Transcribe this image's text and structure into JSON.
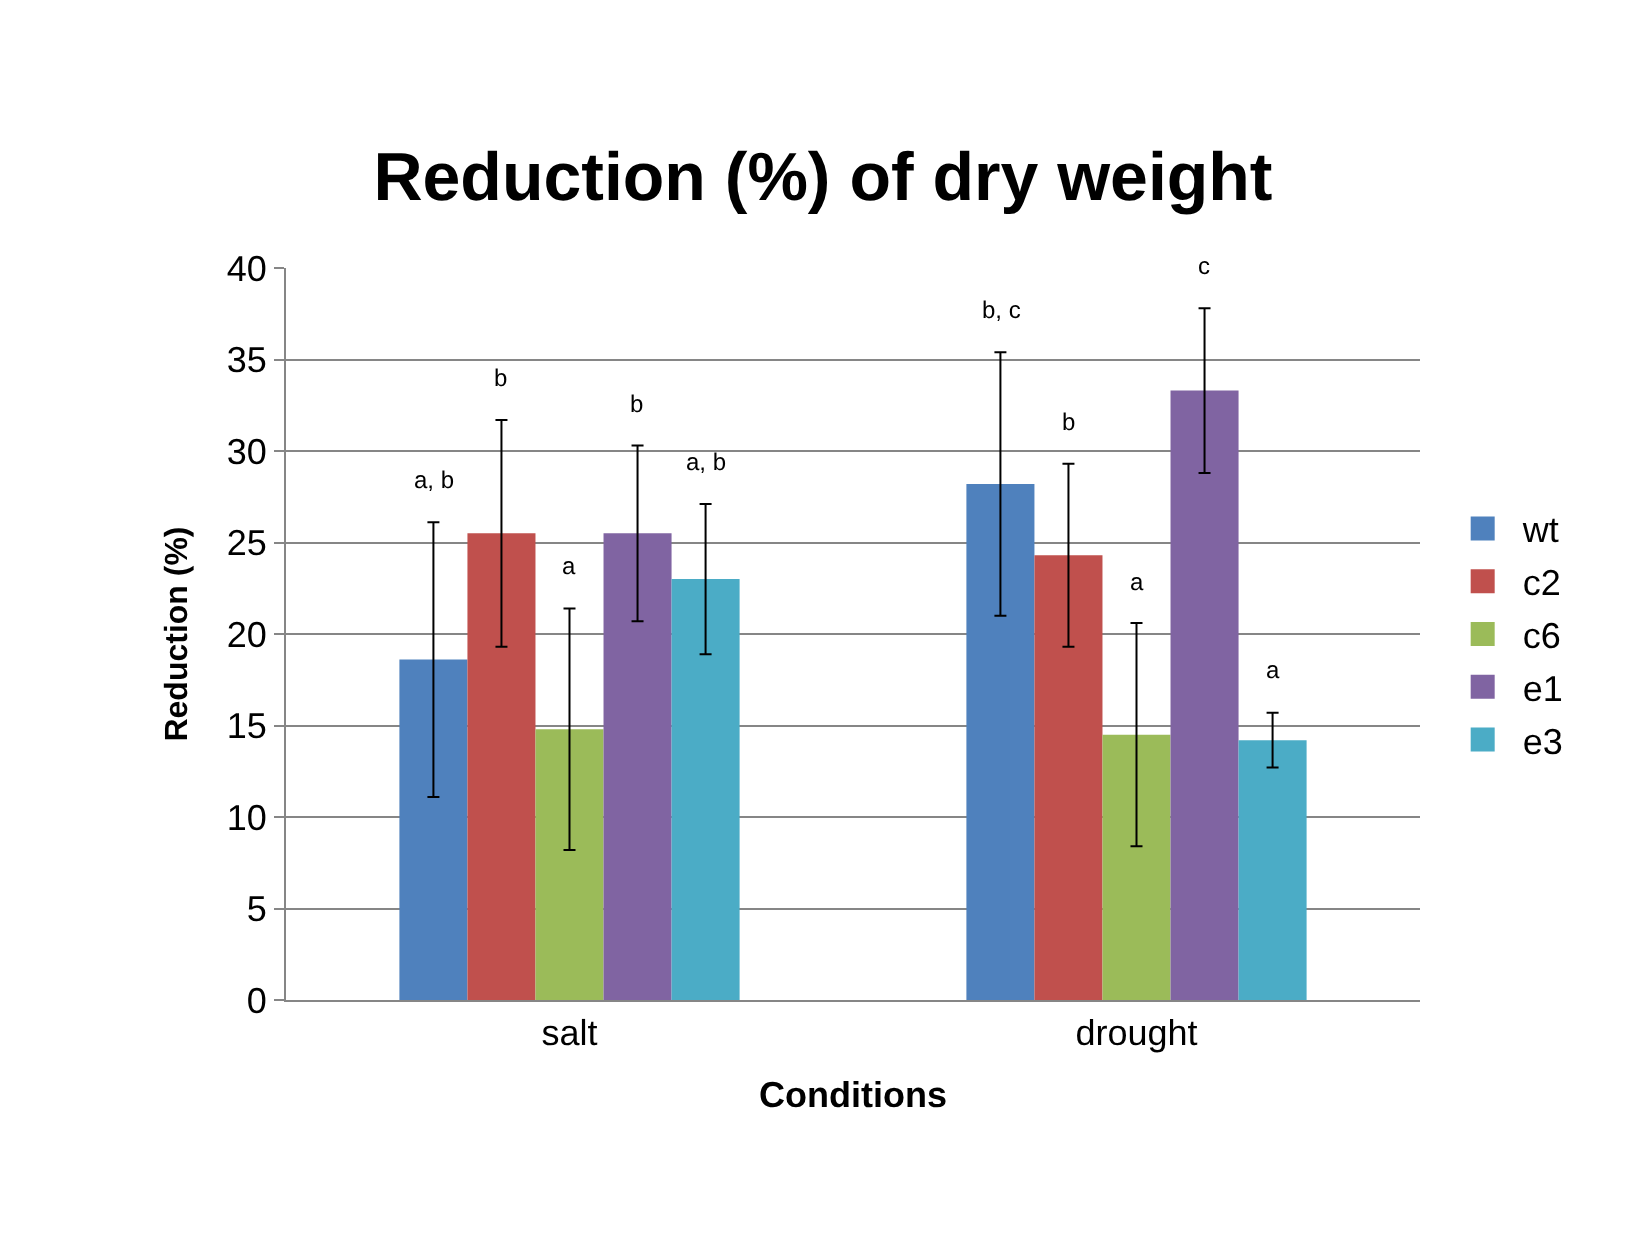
{
  "chart_data": {
    "type": "bar",
    "title": "Reduction (%) of dry weight",
    "xlabel": "Conditions",
    "ylabel": "Reduction (%)",
    "categories": [
      "salt",
      "drought"
    ],
    "series": [
      {
        "name": "wt",
        "color": "#4f81bd",
        "values": [
          18.6,
          28.2
        ],
        "errors": [
          7.5,
          7.2
        ]
      },
      {
        "name": "c2",
        "color": "#c0504d",
        "values": [
          25.5,
          24.3
        ],
        "errors": [
          6.2,
          5.0
        ]
      },
      {
        "name": "c6",
        "color": "#9bbb59",
        "values": [
          14.8,
          14.5
        ],
        "errors": [
          6.6,
          6.1
        ]
      },
      {
        "name": "e1",
        "color": "#8064a2",
        "values": [
          25.5,
          33.3
        ],
        "errors": [
          4.8,
          4.5
        ]
      },
      {
        "name": "e3",
        "color": "#4bacc6",
        "values": [
          23.0,
          14.2
        ],
        "errors": [
          4.1,
          1.5
        ]
      }
    ],
    "annotations": [
      "a, b",
      "b",
      "a",
      "b",
      "a, b",
      "b, c",
      "b",
      "a",
      "c",
      "a"
    ],
    "ylim": [
      0,
      40
    ],
    "yticks": [
      0,
      5,
      10,
      15,
      20,
      25,
      30,
      35,
      40
    ],
    "grid": "y",
    "legend": "right"
  }
}
